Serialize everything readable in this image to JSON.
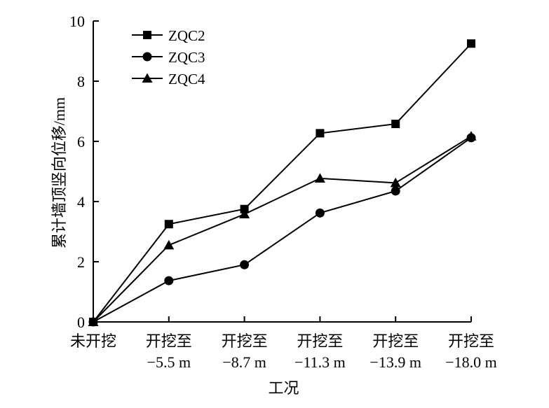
{
  "chart_data": {
    "type": "line",
    "title": "",
    "xlabel": "工况",
    "ylabel": "累计墙顶竖向位移/mm",
    "ylim": [
      0,
      10
    ],
    "yticks": [
      0,
      2,
      4,
      6,
      8,
      10
    ],
    "categories": [
      {
        "line1": "未开挖",
        "line2": ""
      },
      {
        "line1": "开挖至",
        "line2": "−5.5 m"
      },
      {
        "line1": "开挖至",
        "line2": "−8.7 m"
      },
      {
        "line1": "开挖至",
        "line2": "−11.3 m"
      },
      {
        "line1": "开挖至",
        "line2": "−13.9 m"
      },
      {
        "line1": "开挖至",
        "line2": "−18.0 m"
      }
    ],
    "series": [
      {
        "name": "ZQC2",
        "marker": "square",
        "values": [
          0,
          3.25,
          3.75,
          6.27,
          6.58,
          9.25
        ]
      },
      {
        "name": "ZQC3",
        "marker": "circle",
        "values": [
          0,
          1.37,
          1.9,
          3.62,
          4.35,
          6.12
        ]
      },
      {
        "name": "ZQC4",
        "marker": "triangle",
        "values": [
          0,
          2.55,
          3.58,
          4.77,
          4.62,
          6.17
        ]
      }
    ],
    "legend_position": "top-left",
    "grid": false,
    "color": "#000000"
  }
}
